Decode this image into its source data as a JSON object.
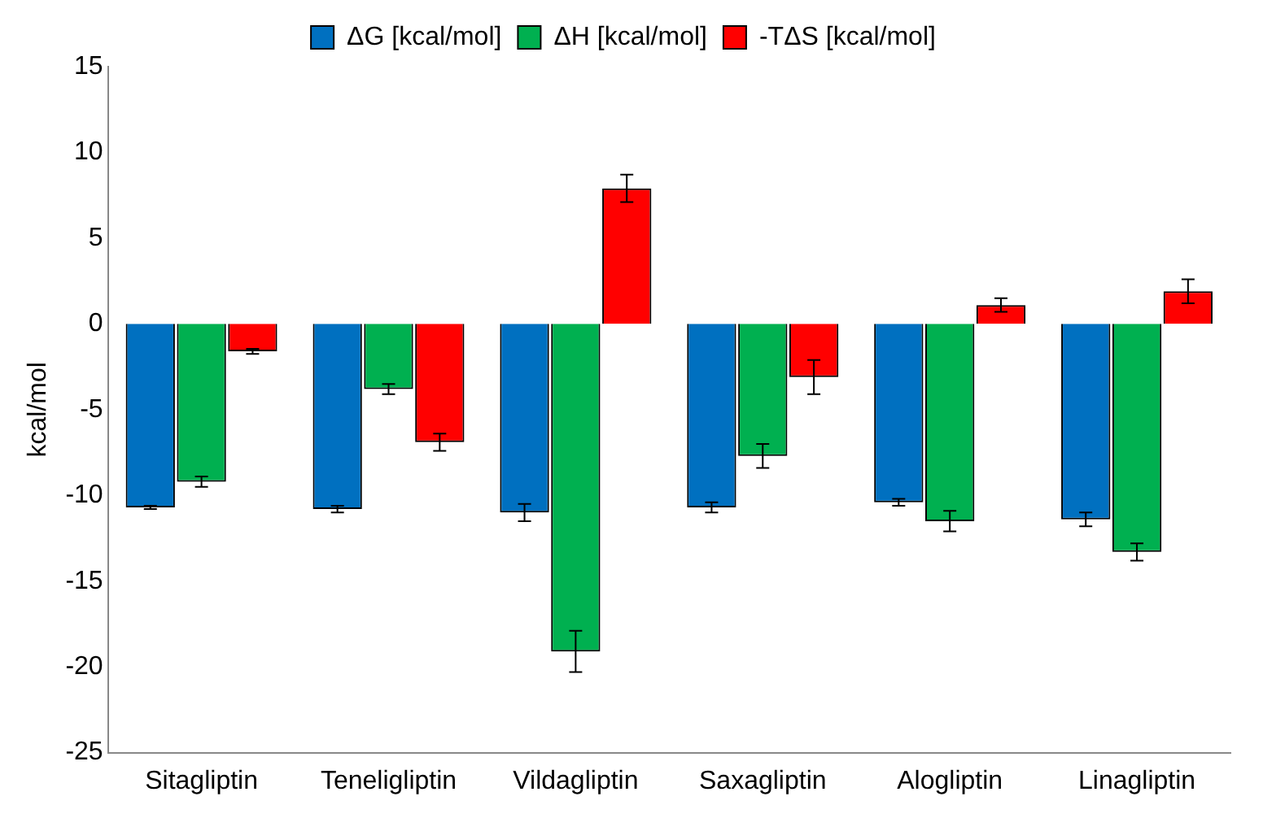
{
  "chart_data": {
    "type": "bar",
    "ylabel": "kcal/mol",
    "categories": [
      "Sitagliptin",
      "Teneligliptin",
      "Vildagliptin",
      "Saxagliptin",
      "Alogliptin",
      "Linagliptin"
    ],
    "series": [
      {
        "name": "ΔG [kcal/mol]",
        "color": "#0070c0",
        "values": [
          -10.7,
          -10.8,
          -11.0,
          -10.7,
          -10.4,
          -11.4
        ],
        "errors": [
          0.1,
          0.2,
          0.5,
          0.3,
          0.2,
          0.4
        ]
      },
      {
        "name": "ΔH [kcal/mol]",
        "color": "#00b050",
        "values": [
          -9.2,
          -3.8,
          -19.1,
          -7.7,
          -11.5,
          -13.3
        ],
        "errors": [
          0.3,
          0.3,
          1.2,
          0.7,
          0.6,
          0.5
        ]
      },
      {
        "name": "-TΔS [kcal/mol]",
        "color": "#ff0000",
        "values": [
          -1.6,
          -6.9,
          7.9,
          -3.1,
          1.1,
          1.9
        ],
        "errors": [
          0.15,
          0.5,
          0.8,
          1.0,
          0.4,
          0.7
        ]
      }
    ],
    "ylim": [
      -25,
      15
    ],
    "yticks": [
      -25,
      -20,
      -15,
      -10,
      -5,
      0,
      5,
      10,
      15
    ],
    "grid": false,
    "legend": "top"
  }
}
